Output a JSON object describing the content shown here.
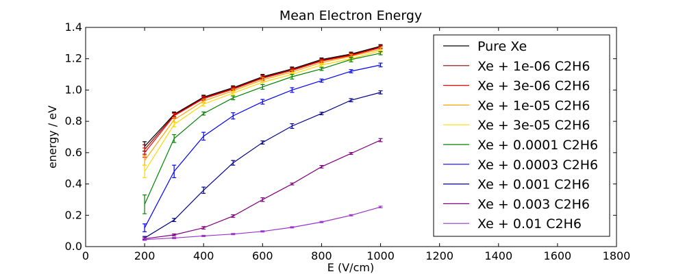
{
  "chart_data": {
    "type": "line",
    "title": "Mean Electron Energy",
    "xlabel": "E (V/cm)",
    "ylabel": "energy / eV",
    "xlim": [
      0,
      1800
    ],
    "ylim": [
      0.0,
      1.4
    ],
    "xticks": [
      "0",
      "200",
      "400",
      "600",
      "800",
      "1000",
      "1200",
      "1400",
      "1600",
      "1800"
    ],
    "yticks": [
      "0.0",
      "0.2",
      "0.4",
      "0.6",
      "0.8",
      "1.0",
      "1.2",
      "1.4"
    ],
    "grid": false,
    "legend_position": "top-right",
    "x": [
      200,
      300,
      400,
      500,
      600,
      700,
      800,
      900,
      1000
    ],
    "series": [
      {
        "name": "Pure Xe",
        "color": "#000000",
        "values": [
          0.64,
          0.845,
          0.955,
          1.015,
          1.085,
          1.135,
          1.195,
          1.23,
          1.28
        ],
        "errors": [
          0.03,
          0.015,
          0.012,
          0.012,
          0.015,
          0.012,
          0.01,
          0.012,
          0.01
        ]
      },
      {
        "name": "Xe + 1e-06 C2H6",
        "color": "#8b0000",
        "values": [
          0.62,
          0.84,
          0.95,
          1.01,
          1.08,
          1.13,
          1.19,
          1.225,
          1.275
        ],
        "errors": [
          0.03,
          0.015,
          0.012,
          0.012,
          0.015,
          0.012,
          0.01,
          0.012,
          0.01
        ]
      },
      {
        "name": "Xe + 3e-06 C2H6",
        "color": "#ff0000",
        "values": [
          0.6,
          0.835,
          0.945,
          1.005,
          1.075,
          1.125,
          1.185,
          1.22,
          1.27
        ],
        "errors": [
          0.03,
          0.015,
          0.012,
          0.012,
          0.015,
          0.012,
          0.01,
          0.012,
          0.01
        ]
      },
      {
        "name": "Xe + 1e-05 C2H6",
        "color": "#ffa500",
        "values": [
          0.55,
          0.81,
          0.93,
          0.995,
          1.065,
          1.115,
          1.175,
          1.215,
          1.26
        ],
        "errors": [
          0.03,
          0.015,
          0.012,
          0.012,
          0.015,
          0.012,
          0.01,
          0.012,
          0.01
        ]
      },
      {
        "name": "Xe + 3e-05 C2H6",
        "color": "#ffd700",
        "values": [
          0.48,
          0.78,
          0.91,
          0.98,
          1.05,
          1.1,
          1.16,
          1.2,
          1.25
        ],
        "errors": [
          0.04,
          0.015,
          0.012,
          0.012,
          0.015,
          0.012,
          0.01,
          0.012,
          0.01
        ]
      },
      {
        "name": "Xe + 0.0001 C2H6",
        "color": "#008000",
        "values": [
          0.27,
          0.69,
          0.85,
          0.95,
          1.02,
          1.085,
          1.135,
          1.195,
          1.235
        ],
        "errors": [
          0.06,
          0.025,
          0.01,
          0.012,
          0.015,
          0.015,
          0.01,
          0.015,
          0.01
        ]
      },
      {
        "name": "Xe + 0.0003 C2H6",
        "color": "#0000ff",
        "values": [
          0.12,
          0.48,
          0.705,
          0.835,
          0.925,
          1.0,
          1.06,
          1.12,
          1.16
        ],
        "errors": [
          0.025,
          0.04,
          0.025,
          0.02,
          0.015,
          0.015,
          0.01,
          0.01,
          0.012
        ]
      },
      {
        "name": "Xe + 0.001 C2H6",
        "color": "#00008b",
        "values": [
          0.055,
          0.17,
          0.36,
          0.535,
          0.665,
          0.77,
          0.85,
          0.935,
          0.985
        ],
        "errors": [
          0.01,
          0.01,
          0.02,
          0.015,
          0.01,
          0.015,
          0.008,
          0.01,
          0.01
        ]
      },
      {
        "name": "Xe + 0.003 C2H6",
        "color": "#800080",
        "values": [
          0.05,
          0.075,
          0.12,
          0.195,
          0.3,
          0.4,
          0.51,
          0.595,
          0.68
        ],
        "errors": [
          0.008,
          0.006,
          0.008,
          0.008,
          0.012,
          0.006,
          0.008,
          0.006,
          0.01
        ]
      },
      {
        "name": "Xe + 0.01 C2H6",
        "color": "#9932cc",
        "values": [
          0.045,
          0.055,
          0.068,
          0.08,
          0.097,
          0.123,
          0.157,
          0.2,
          0.253
        ],
        "errors": [
          0.005,
          0.004,
          0.004,
          0.004,
          0.004,
          0.004,
          0.004,
          0.004,
          0.005
        ]
      }
    ]
  }
}
